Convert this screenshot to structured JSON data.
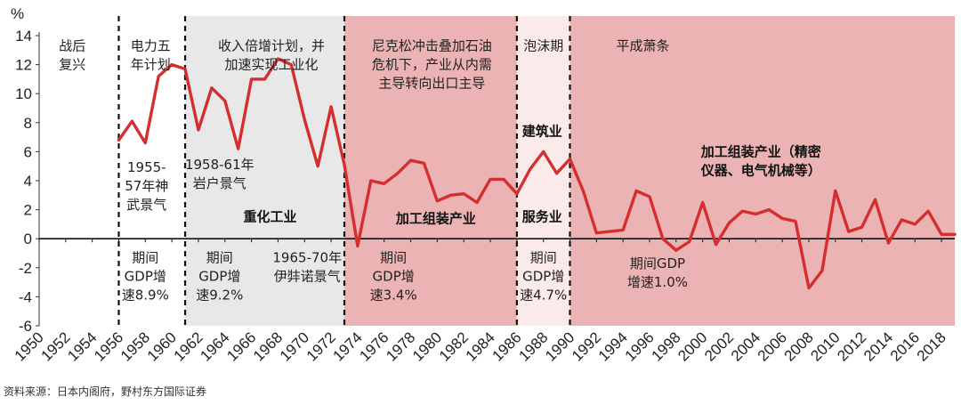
{
  "chart_data": {
    "type": "line",
    "ylabel": "%",
    "ylim": [
      -6,
      14
    ],
    "yticks": [
      "14",
      "12",
      "10",
      "8",
      "6",
      "4",
      "2",
      "0",
      "-2",
      "-4",
      "-6"
    ],
    "xlim": [
      1950,
      2019
    ],
    "xticks": [
      "1950",
      "1952",
      "1954",
      "1956",
      "1958",
      "1960",
      "1962",
      "1964",
      "1966",
      "1968",
      "1970",
      "1972",
      "1974",
      "1976",
      "1978",
      "1980",
      "1982",
      "1984",
      "1986",
      "1988",
      "1990",
      "1992",
      "1994",
      "1996",
      "1998",
      "2000",
      "2002",
      "2004",
      "2006",
      "2008",
      "2010",
      "2012",
      "2014",
      "2016",
      "2018"
    ],
    "series": [
      {
        "color": "#d62e2e",
        "x": [
          1956,
          1957,
          1958,
          1959,
          1960,
          1961,
          1962,
          1963,
          1964,
          1965,
          1966,
          1967,
          1968,
          1969,
          1970,
          1971,
          1972,
          1973,
          1974,
          1975,
          1976,
          1977,
          1978,
          1979,
          1980,
          1981,
          1982,
          1983,
          1984,
          1985,
          1986,
          1987,
          1988,
          1989,
          1990,
          1991,
          1992,
          1993,
          1994,
          1995,
          1996,
          1997,
          1998,
          1999,
          2000,
          2001,
          2002,
          2003,
          2004,
          2005,
          2006,
          2007,
          2008,
          2009,
          2010,
          2011,
          2012,
          2013,
          2014,
          2015,
          2016,
          2017,
          2018,
          2019
        ],
        "values": [
          6.8,
          8.1,
          6.6,
          11.2,
          12.0,
          11.7,
          7.5,
          10.4,
          9.5,
          6.2,
          11.0,
          11.0,
          12.4,
          12.0,
          8.2,
          5.0,
          9.1,
          5.1,
          -0.5,
          4.0,
          3.8,
          4.5,
          5.4,
          5.2,
          2.6,
          3.0,
          3.1,
          2.5,
          4.1,
          4.1,
          3.1,
          4.8,
          6.0,
          4.5,
          5.5,
          3.3,
          0.4,
          0.5,
          0.6,
          3.3,
          2.9,
          0.0,
          -0.8,
          -0.2,
          2.5,
          -0.4,
          1.1,
          1.9,
          1.7,
          2.0,
          1.4,
          1.2,
          -3.4,
          -2.2,
          3.3,
          0.5,
          0.8,
          2.7,
          -0.3,
          1.3,
          1.0,
          1.9,
          0.3,
          0.3
        ]
      }
    ],
    "periods": [
      {
        "x0": 1961,
        "x1": 1973,
        "color": "#e8e8e8"
      },
      {
        "x0": 1973,
        "x1": 1986,
        "color": "#ebb3b3"
      },
      {
        "x0": 1986,
        "x1": 1990,
        "color": "#fbeaea"
      },
      {
        "x0": 1990,
        "x1": 2019,
        "color": "#ebb3b3"
      }
    ],
    "dividers": [
      1956,
      1961,
      1973,
      1986,
      1990
    ],
    "annotations": [
      {
        "x": 1952.5,
        "y": 13.0,
        "style": "normal",
        "lines": [
          "战后",
          "复兴"
        ]
      },
      {
        "x": 1958.4,
        "y": 13.0,
        "style": "normal",
        "lines": [
          "电力五",
          "年计划"
        ]
      },
      {
        "x": 1967.5,
        "y": 13.0,
        "style": "normal",
        "lines": [
          "收入倍增计划，并",
          "加速实现工业化"
        ]
      },
      {
        "x": 1979.6,
        "y": 13.0,
        "style": "normal",
        "lines": [
          "尼克松冲击叠加石油",
          "危机下，产业从内需",
          "主导转向出口主导"
        ]
      },
      {
        "x": 1988.0,
        "y": 13.0,
        "style": "normal",
        "lines": [
          "泡沫期"
        ]
      },
      {
        "x": 1995.5,
        "y": 13.0,
        "style": "normal",
        "lines": [
          "平成萧条"
        ]
      },
      {
        "x": 1958.1,
        "y": 4.6,
        "style": "normal",
        "lines": [
          "1955-",
          "57年神",
          "武景气"
        ]
      },
      {
        "x": 1963.6,
        "y": 4.8,
        "style": "normal",
        "lines": [
          "1958-61年",
          "岩户景气"
        ]
      },
      {
        "x": 1967.4,
        "y": 1.2,
        "style": "bold",
        "lines": [
          "重化工业"
        ]
      },
      {
        "x": 1979.9,
        "y": 1.1,
        "style": "bold",
        "lines": [
          "加工组装产业"
        ]
      },
      {
        "x": 1987.9,
        "y": 7.1,
        "style": "bold",
        "lines": [
          "建筑业"
        ]
      },
      {
        "x": 1987.9,
        "y": 1.2,
        "style": "bold",
        "lines": [
          "服务业"
        ]
      },
      {
        "x": 2004.4,
        "y": 5.7,
        "style": "bold",
        "lines": [
          "加工组装产业（精密",
          "仪器、电气机械等）"
        ]
      },
      {
        "x": 1958.0,
        "y": -1.6,
        "style": "normal",
        "lines": [
          "期间",
          "GDP增",
          "速8.9%"
        ]
      },
      {
        "x": 1963.6,
        "y": -1.6,
        "style": "normal",
        "lines": [
          "期间",
          "GDP增",
          "速9.2%"
        ]
      },
      {
        "x": 1970.2,
        "y": -1.6,
        "style": "normal",
        "lines": [
          "1965-70年",
          "伊弉诺景气"
        ]
      },
      {
        "x": 1976.7,
        "y": -1.6,
        "style": "normal",
        "lines": [
          "期间",
          "GDP增",
          "速3.4%"
        ]
      },
      {
        "x": 1988.0,
        "y": -1.6,
        "style": "normal",
        "lines": [
          "期间",
          "GDP增",
          "速4.7%"
        ]
      },
      {
        "x": 1996.6,
        "y": -2.0,
        "style": "normal",
        "lines": [
          "期间GDP",
          "增速1.0%"
        ]
      }
    ]
  },
  "source": "资料来源：日本内阁府，野村东方国际证券"
}
